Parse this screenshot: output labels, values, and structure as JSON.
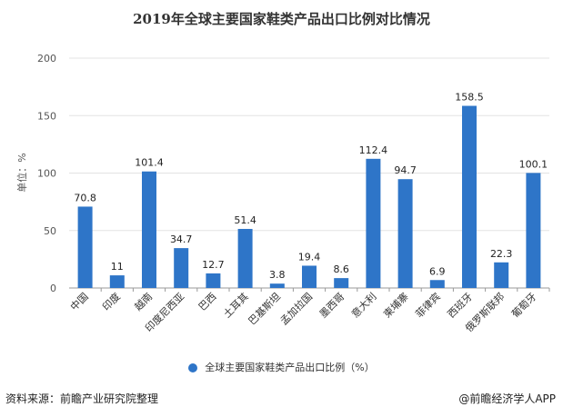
{
  "chart_data": {
    "type": "bar",
    "title": "2019年全球主要国家鞋类产品出口比例对比情况",
    "ylabel": "单位：%",
    "xlabel": "",
    "ylim": [
      0,
      200
    ],
    "yticks": [
      0,
      50,
      100,
      150,
      200
    ],
    "categories": [
      "中国",
      "印度",
      "越南",
      "印度尼西亚",
      "巴西",
      "土耳其",
      "巴基斯坦",
      "孟加拉国",
      "墨西哥",
      "意大利",
      "柬埔寨",
      "菲律宾",
      "西班牙",
      "俄罗斯联邦",
      "葡萄牙"
    ],
    "series": [
      {
        "name": "全球主要国家鞋类产品出口比例（%）",
        "values": [
          70.8,
          11,
          101.4,
          34.7,
          12.7,
          51.4,
          3.8,
          19.4,
          8.6,
          112.4,
          94.7,
          6.9,
          158.5,
          22.3,
          100.1
        ]
      }
    ],
    "value_labels": [
      "70.8",
      "11",
      "101.4",
      "34.7",
      "12.7",
      "51.4",
      "3.8",
      "19.4",
      "8.6",
      "112.4",
      "94.7",
      "6.9",
      "158.5",
      "22.3",
      "100.1"
    ],
    "grid": true,
    "legend_position": "bottom",
    "bar_color": "#2e75c8"
  },
  "footer": {
    "source": "资料来源：前瞻产业研究院整理",
    "brand": "@前瞻经济学人APP"
  }
}
